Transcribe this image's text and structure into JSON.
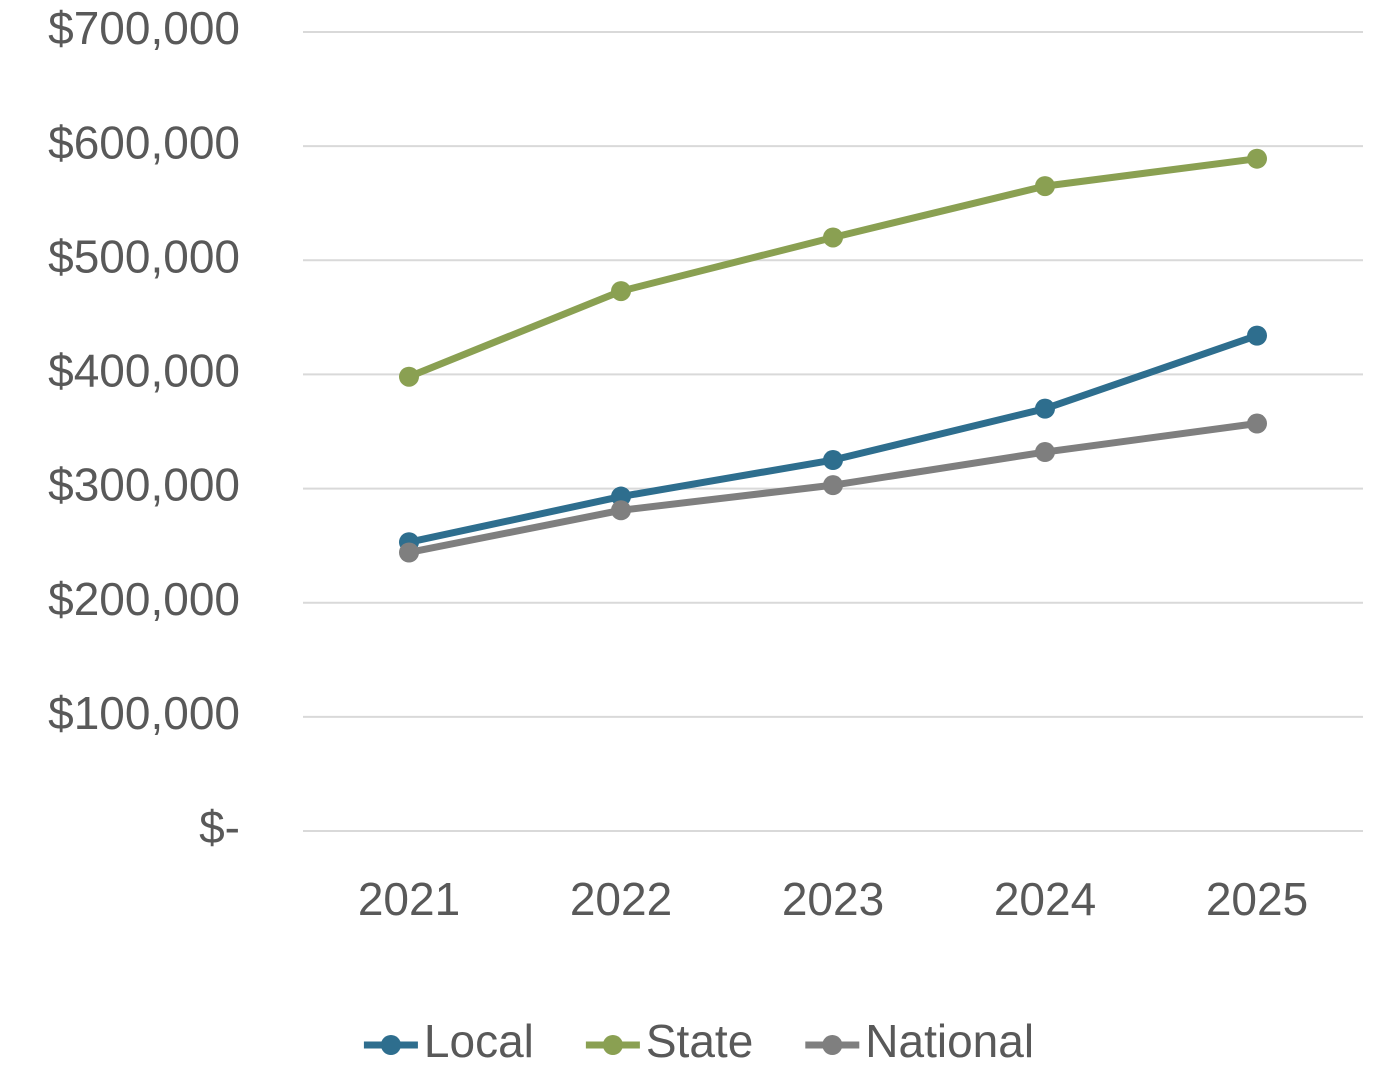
{
  "chart_data": {
    "type": "line",
    "categories": [
      "2021",
      "2022",
      "2023",
      "2024",
      "2025"
    ],
    "series": [
      {
        "name": "Local",
        "color": "#2e6e8e",
        "values": [
          253000,
          293000,
          325000,
          370000,
          434000
        ]
      },
      {
        "name": "State",
        "color": "#8aa052",
        "values": [
          398000,
          473000,
          520000,
          565000,
          589000
        ]
      },
      {
        "name": "National",
        "color": "#7f7f7f",
        "values": [
          244000,
          281000,
          303000,
          332000,
          357000
        ]
      }
    ],
    "ylim": [
      0,
      700000
    ],
    "yticks": [
      {
        "value": 0,
        "label": "$-"
      },
      {
        "value": 100000,
        "label": "$100,000"
      },
      {
        "value": 200000,
        "label": "$200,000"
      },
      {
        "value": 300000,
        "label": "$300,000"
      },
      {
        "value": 400000,
        "label": "$400,000"
      },
      {
        "value": 500000,
        "label": "$500,000"
      },
      {
        "value": 600000,
        "label": "$600,000"
      },
      {
        "value": 700000,
        "label": "$700,000"
      }
    ],
    "grid": true,
    "legend": "bottom"
  }
}
